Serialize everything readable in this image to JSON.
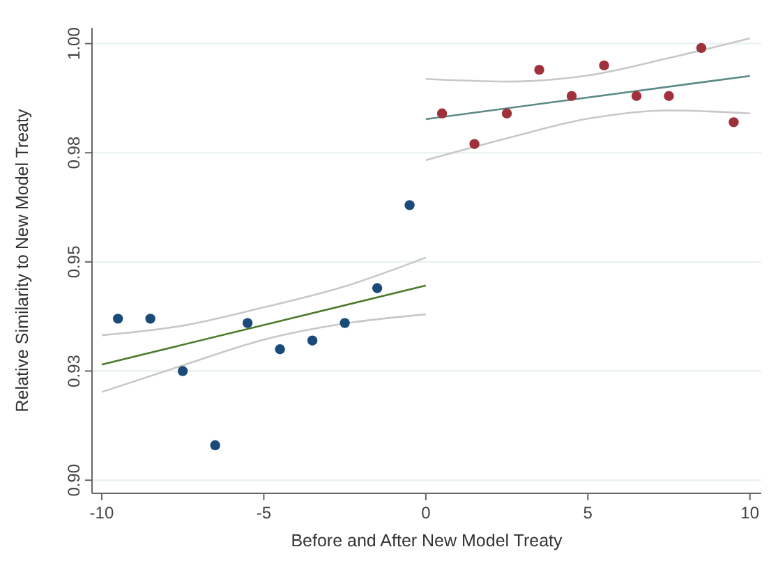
{
  "chart_data": {
    "type": "scatter",
    "xlabel": "Before and After New Model Treaty",
    "ylabel": "Relative Similarity to New Model Treaty",
    "xlim": [
      -10.3,
      10.35
    ],
    "ylim": [
      0.897,
      1.0036
    ],
    "xticks": [
      -10,
      -5,
      0,
      5,
      10
    ],
    "yticks": [
      {
        "value": 0.9,
        "label": "0.90"
      },
      {
        "value": 0.925,
        "label": "0.93"
      },
      {
        "value": 0.95,
        "label": "0.95"
      },
      {
        "value": 0.975,
        "label": "0.98"
      },
      {
        "value": 1.0,
        "label": "1.00"
      }
    ],
    "grid": "y",
    "series": [
      {
        "type": "line",
        "color": "#c8c8c8",
        "marker": "none",
        "x": [
          -10,
          -7.5,
          -5,
          -2.5,
          0
        ],
        "values": [
          0.9332,
          0.9354,
          0.9396,
          0.9444,
          0.951
        ]
      },
      {
        "type": "line",
        "color": "#c8c8c8",
        "marker": "none",
        "x": [
          -10,
          -7.5,
          -5,
          -2.5,
          0
        ],
        "values": [
          0.9202,
          0.9263,
          0.9322,
          0.9359,
          0.938
        ]
      },
      {
        "type": "line",
        "color": "#c8c8c8",
        "marker": "none",
        "x": [
          0,
          2.5,
          5,
          7.5,
          10
        ],
        "values": [
          0.9919,
          0.9913,
          0.9927,
          0.9967,
          1.0012
        ]
      },
      {
        "type": "line",
        "color": "#c8c8c8",
        "marker": "none",
        "x": [
          0,
          2.5,
          5,
          7.5,
          10
        ],
        "values": [
          0.9733,
          0.9783,
          0.9828,
          0.9847,
          0.984
        ]
      },
      {
        "type": "line",
        "color": "#4a7a2a",
        "marker": "none",
        "x": [
          -10,
          0
        ],
        "values": [
          0.9265,
          0.9446
        ]
      },
      {
        "type": "line",
        "color": "#5a8a88",
        "marker": "none",
        "x": [
          0,
          10
        ],
        "values": [
          0.9827,
          0.9926
        ]
      },
      {
        "color": "#1a4a7a",
        "marker": "circle",
        "x": [
          -9.5,
          -8.5,
          -7.5,
          -6.5,
          -5.5,
          -4.5,
          -3.5,
          -2.5,
          -1.5,
          -0.5
        ],
        "values": [
          0.937,
          0.937,
          0.925,
          0.908,
          0.936,
          0.93,
          0.932,
          0.936,
          0.944,
          0.963
        ]
      },
      {
        "color": "#a0313a",
        "marker": "circle",
        "x": [
          0.5,
          1.5,
          2.5,
          3.5,
          4.5,
          5.5,
          6.5,
          7.5,
          8.5,
          9.5
        ],
        "values": [
          0.984,
          0.977,
          0.984,
          0.994,
          0.988,
          0.995,
          0.988,
          0.988,
          0.999,
          0.982
        ]
      }
    ]
  }
}
